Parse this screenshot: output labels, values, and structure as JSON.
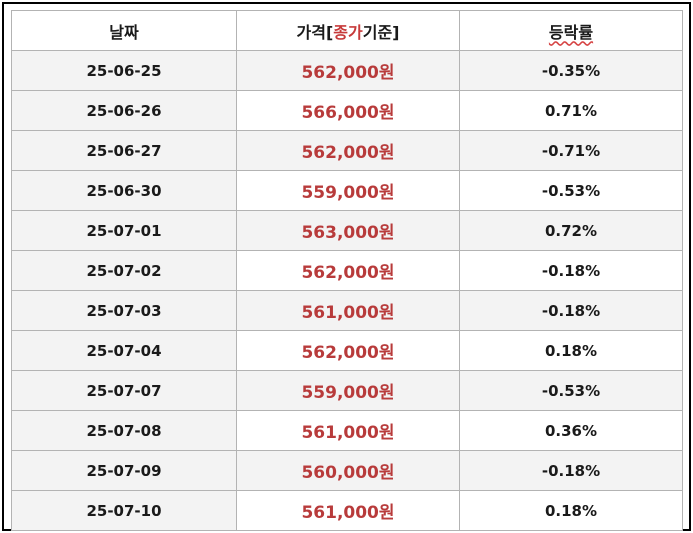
{
  "table": {
    "headers": {
      "date": "날짜",
      "price_prefix": "가격[",
      "price_accent": "종가",
      "price_suffix": "기준]",
      "change": "등락률"
    },
    "rows": [
      {
        "date": "25-06-25",
        "price": "562,000원",
        "change": "-0.35%"
      },
      {
        "date": "25-06-26",
        "price": "566,000원",
        "change": "0.71%"
      },
      {
        "date": "25-06-27",
        "price": "562,000원",
        "change": "-0.71%"
      },
      {
        "date": "25-06-30",
        "price": "559,000원",
        "change": "-0.53%"
      },
      {
        "date": "25-07-01",
        "price": "563,000원",
        "change": "0.72%"
      },
      {
        "date": "25-07-02",
        "price": "562,000원",
        "change": "-0.18%"
      },
      {
        "date": "25-07-03",
        "price": "561,000원",
        "change": "-0.18%"
      },
      {
        "date": "25-07-04",
        "price": "562,000원",
        "change": "0.18%"
      },
      {
        "date": "25-07-07",
        "price": "559,000원",
        "change": "-0.53%"
      },
      {
        "date": "25-07-08",
        "price": "561,000원",
        "change": "0.36%"
      },
      {
        "date": "25-07-09",
        "price": "560,000원",
        "change": "-0.18%"
      },
      {
        "date": "25-07-10",
        "price": "561,000원",
        "change": "0.18%"
      }
    ]
  },
  "colors": {
    "price_text": "#b83b3b",
    "accent_text": "#c73a3a",
    "row_shade": "#f3f3f3",
    "grid_line": "#b3b3b3"
  }
}
